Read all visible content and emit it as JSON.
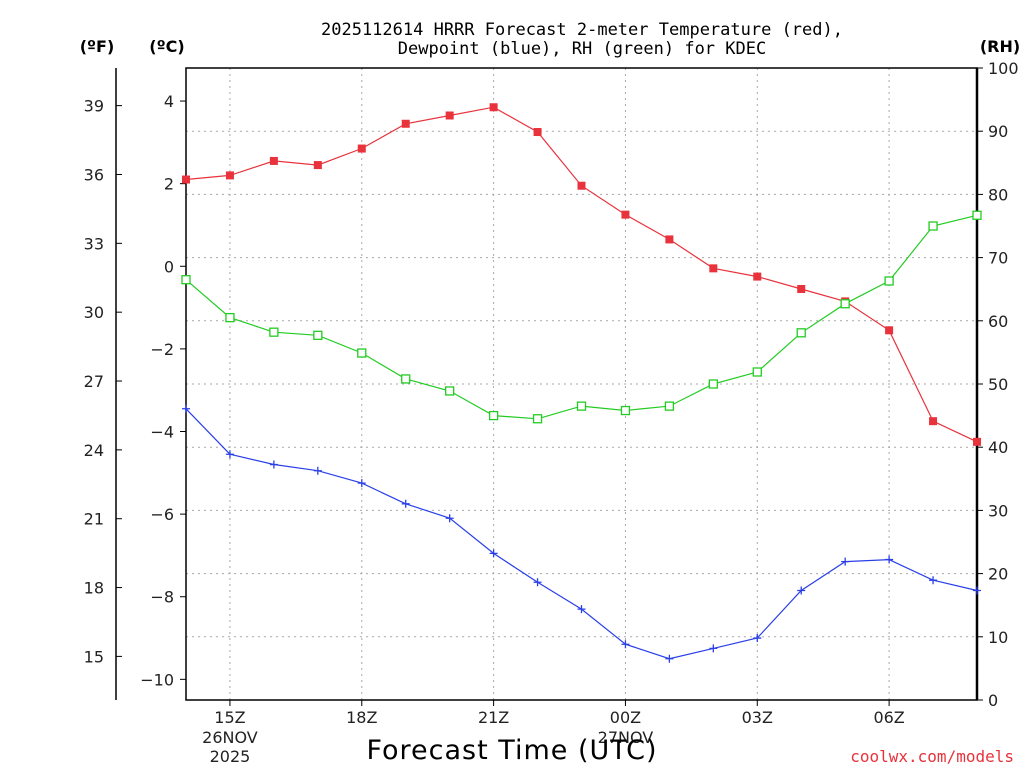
{
  "chart_data": {
    "type": "line",
    "title_line1": "2025112614 HRRR Forecast 2-meter Temperature (red),",
    "title_line2": "Dewpoint (blue), RH (green) for KDEC",
    "xlabel": "Forecast Time (UTC)",
    "credit": "coolwx.com/models",
    "units": {
      "f": "(ºF)",
      "c": "(ºC)",
      "rh": "(RH)"
    },
    "x_hours": [
      14,
      15,
      16,
      17,
      18,
      19,
      20,
      21,
      22,
      23,
      24,
      25,
      26,
      27,
      28,
      29,
      30,
      31,
      32
    ],
    "x_ticks": [
      {
        "hour": 15,
        "label": "15Z",
        "sub1": "26NOV",
        "sub2": "2025"
      },
      {
        "hour": 18,
        "label": "18Z",
        "sub1": "",
        "sub2": ""
      },
      {
        "hour": 21,
        "label": "21Z",
        "sub1": "",
        "sub2": ""
      },
      {
        "hour": 24,
        "label": "00Z",
        "sub1": "27NOV",
        "sub2": ""
      },
      {
        "hour": 27,
        "label": "03Z",
        "sub1": "",
        "sub2": ""
      },
      {
        "hour": 30,
        "label": "06Z",
        "sub1": "",
        "sub2": ""
      }
    ],
    "left_c_axis": {
      "range": [
        -10.5,
        4.8
      ],
      "ticks": [
        4,
        2,
        0,
        -2,
        -4,
        -6,
        -8,
        -10
      ]
    },
    "left_f_axis": {
      "ticks": [
        39,
        36,
        33,
        30,
        27,
        24,
        21,
        18,
        15
      ]
    },
    "right_rh_axis": {
      "range": [
        0,
        100
      ],
      "ticks": [
        100,
        90,
        80,
        70,
        60,
        50,
        40,
        30,
        20,
        10,
        0
      ]
    },
    "series": [
      {
        "name": "Temperature",
        "unit": "C",
        "color": "#e8323c",
        "marker": "filled-square",
        "values": [
          2.1,
          2.2,
          2.55,
          2.45,
          2.85,
          3.45,
          3.65,
          3.85,
          3.25,
          1.95,
          1.25,
          0.65,
          -0.05,
          -0.25,
          -0.55,
          -0.85,
          -1.55,
          -3.75,
          -4.25
        ]
      },
      {
        "name": "Dewpoint",
        "unit": "C",
        "color": "#2a3fe8",
        "marker": "plus",
        "values": [
          -3.45,
          -4.55,
          -4.8,
          -4.95,
          -5.25,
          -5.75,
          -6.1,
          -6.95,
          -7.65,
          -8.3,
          -9.15,
          -9.5,
          -9.25,
          -9.0,
          -7.85,
          -7.15,
          -7.1,
          -7.6,
          -7.85
        ]
      },
      {
        "name": "RH",
        "unit": "%",
        "color": "#22cc22",
        "marker": "open-square",
        "values": [
          66.5,
          60.5,
          58.2,
          57.7,
          54.9,
          50.8,
          48.9,
          45.0,
          44.5,
          46.5,
          45.8,
          46.5,
          50.0,
          51.9,
          58.1,
          62.7,
          66.3,
          75.0,
          76.7
        ]
      }
    ]
  }
}
